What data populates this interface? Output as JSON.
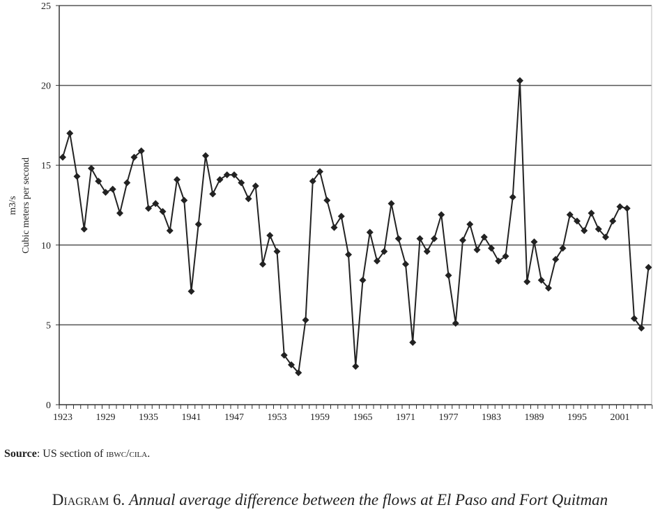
{
  "chart_data": {
    "type": "line",
    "marker": "diamond",
    "line_color": "#222222",
    "ylabel": "Cubic meters per second",
    "yunit": "m3/s",
    "ylim": [
      0,
      25
    ],
    "yticks": [
      0,
      5,
      10,
      15,
      20,
      25
    ],
    "xlim": [
      1923,
      2005
    ],
    "xticks": [
      1923,
      1929,
      1935,
      1941,
      1947,
      1953,
      1959,
      1965,
      1971,
      1977,
      1983,
      1989,
      1995,
      2001
    ],
    "grid": "horizontal",
    "x": [
      1923,
      1924,
      1925,
      1926,
      1927,
      1928,
      1929,
      1930,
      1931,
      1932,
      1933,
      1934,
      1935,
      1936,
      1937,
      1938,
      1939,
      1940,
      1941,
      1942,
      1943,
      1944,
      1945,
      1946,
      1947,
      1948,
      1949,
      1950,
      1951,
      1952,
      1953,
      1954,
      1955,
      1956,
      1957,
      1958,
      1959,
      1960,
      1961,
      1962,
      1963,
      1964,
      1965,
      1966,
      1967,
      1968,
      1969,
      1970,
      1971,
      1972,
      1973,
      1974,
      1975,
      1976,
      1977,
      1978,
      1979,
      1980,
      1981,
      1982,
      1983,
      1984,
      1985,
      1986,
      1987,
      1988,
      1989,
      1990,
      1991,
      1992,
      1993,
      1994,
      1995,
      1996,
      1997,
      1998,
      1999,
      2000,
      2001,
      2002,
      2003,
      2004,
      2005
    ],
    "values": [
      15.5,
      17.0,
      14.3,
      11.0,
      14.8,
      14.0,
      13.3,
      13.5,
      12.0,
      13.9,
      15.5,
      15.9,
      12.3,
      12.6,
      12.1,
      10.9,
      14.1,
      12.8,
      7.1,
      11.3,
      15.6,
      13.2,
      14.1,
      14.4,
      14.4,
      13.9,
      12.9,
      13.7,
      8.8,
      10.6,
      9.6,
      3.1,
      2.5,
      2.0,
      5.3,
      14.0,
      14.6,
      12.8,
      11.1,
      11.8,
      9.4,
      2.4,
      7.8,
      10.8,
      9.0,
      9.6,
      12.6,
      10.4,
      8.8,
      3.9,
      10.4,
      9.6,
      10.4,
      11.9,
      8.1,
      5.1,
      10.3,
      11.3,
      9.7,
      10.5,
      9.8,
      9.0,
      9.3,
      13.0,
      20.3,
      7.7,
      10.2,
      7.8,
      7.3,
      9.1,
      9.8,
      11.9,
      11.5,
      10.9,
      12.0,
      11.0,
      10.5,
      11.5,
      12.4,
      12.3,
      5.4,
      4.8,
      8.6
    ]
  },
  "source": {
    "label": "Source",
    "text": ": US section of ",
    "org": "ibwc/cila",
    "end": "."
  },
  "caption": {
    "number": "Diagram 6.",
    "title": "Annual average difference between the flows at El Paso and Fort Quitman"
  }
}
